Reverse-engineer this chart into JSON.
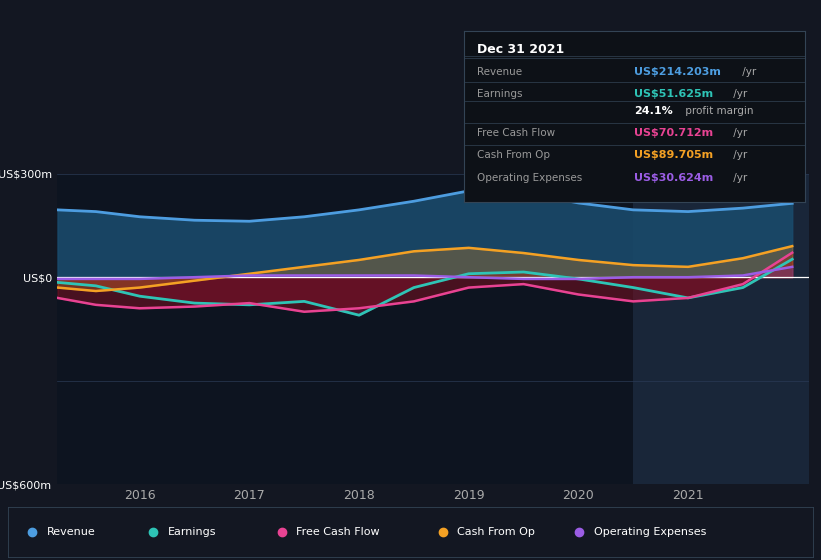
{
  "bg_color": "#131722",
  "ylim": [
    -600,
    300
  ],
  "xlim": [
    2015.25,
    2022.1
  ],
  "xtick_positions": [
    2016,
    2017,
    2018,
    2019,
    2020,
    2021
  ],
  "xtick_labels": [
    "2016",
    "2017",
    "2018",
    "2019",
    "2020",
    "2021"
  ],
  "legend": [
    {
      "label": "Revenue",
      "color": "#4d9de0"
    },
    {
      "label": "Earnings",
      "color": "#2ec4b6"
    },
    {
      "label": "Free Cash Flow",
      "color": "#e84393"
    },
    {
      "label": "Cash From Op",
      "color": "#f4a124"
    },
    {
      "label": "Operating Expenses",
      "color": "#9b5de5"
    }
  ],
  "series": {
    "x": [
      2015.25,
      2015.6,
      2016.0,
      2016.5,
      2017.0,
      2017.5,
      2018.0,
      2018.5,
      2019.0,
      2019.5,
      2020.0,
      2020.5,
      2021.0,
      2021.5,
      2021.95
    ],
    "revenue": [
      195,
      190,
      175,
      165,
      162,
      175,
      195,
      220,
      250,
      245,
      215,
      195,
      190,
      200,
      214
    ],
    "earnings": [
      -15,
      -25,
      -55,
      -75,
      -80,
      -70,
      -110,
      -30,
      10,
      15,
      -5,
      -30,
      -60,
      -30,
      52
    ],
    "free_cash": [
      -60,
      -80,
      -90,
      -85,
      -75,
      -100,
      -90,
      -70,
      -30,
      -20,
      -50,
      -70,
      -60,
      -20,
      71
    ],
    "cash_from_op": [
      -30,
      -40,
      -30,
      -10,
      10,
      30,
      50,
      75,
      85,
      70,
      50,
      35,
      30,
      55,
      90
    ],
    "op_expenses": [
      -5,
      -5,
      -5,
      0,
      5,
      5,
      5,
      5,
      0,
      -5,
      -5,
      0,
      0,
      5,
      30
    ]
  },
  "info_title": "Dec 31 2021",
  "info_rows": [
    {
      "label": "Revenue",
      "value": "US$214.203m",
      "suffix": " /yr",
      "value_color": "#4d9de0"
    },
    {
      "label": "Earnings",
      "value": "US$51.625m",
      "suffix": " /yr",
      "value_color": "#2ec4b6"
    },
    {
      "label": "",
      "value": "24.1%",
      "suffix": " profit margin",
      "value_color": "#ffffff"
    },
    {
      "label": "Free Cash Flow",
      "value": "US$70.712m",
      "suffix": " /yr",
      "value_color": "#e84393"
    },
    {
      "label": "Cash From Op",
      "value": "US$89.705m",
      "suffix": " /yr",
      "value_color": "#f4a124"
    },
    {
      "label": "Operating Expenses",
      "value": "US$30.624m",
      "suffix": " /yr",
      "value_color": "#9b5de5"
    }
  ],
  "highlight_x_start": 2020.5,
  "highlight_x_end": 2022.1
}
